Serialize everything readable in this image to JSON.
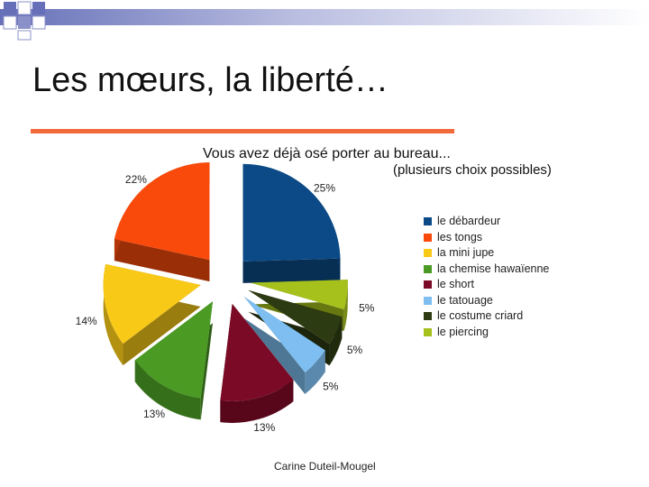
{
  "slide": {
    "title": "Les mœurs, la liberté…",
    "footer": "Carine Duteil-Mougel"
  },
  "chart_data": {
    "type": "pie",
    "title": "Vous avez déjà osé porter au bureau...",
    "subtitle": "(plusieurs choix possibles)",
    "legend_position": "right",
    "slices": [
      {
        "name": "le débardeur",
        "value": 25,
        "label": "25%",
        "color": "#0b4a86"
      },
      {
        "name": "le piercing",
        "value": 5,
        "label": "5%",
        "color": "#a6c11c"
      },
      {
        "name": "le costume criard",
        "value": 5,
        "label": "5%",
        "color": "#2d3b12"
      },
      {
        "name": "le tatouage",
        "value": 5,
        "label": "5%",
        "color": "#7ebef0"
      },
      {
        "name": "le short",
        "value": 13,
        "label": "13%",
        "color": "#7a0a25"
      },
      {
        "name": "la chemise hawaïenne",
        "value": 13,
        "label": "13%",
        "color": "#4a9a24"
      },
      {
        "name": "la mini jupe",
        "value": 14,
        "label": "14%",
        "color": "#f9c918"
      },
      {
        "name": "les tongs",
        "value": 22,
        "label": "22%",
        "color": "#f94a0b"
      }
    ],
    "legend_order": [
      "le débardeur",
      "les tongs",
      "la mini jupe",
      "la chemise hawaïenne",
      "le short",
      "le tatouage",
      "le costume criard",
      "le piercing"
    ]
  }
}
